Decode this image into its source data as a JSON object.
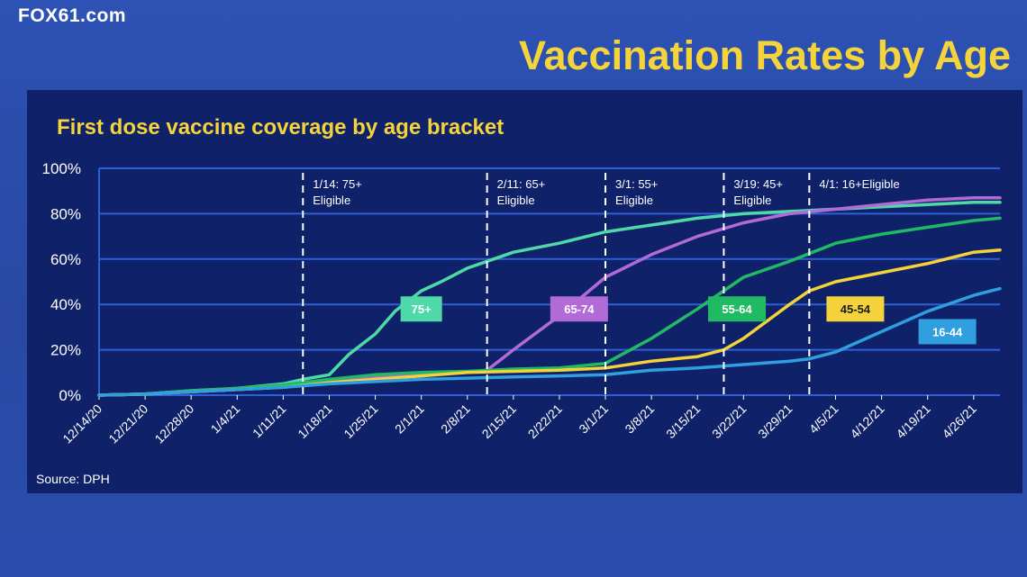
{
  "header": {
    "brand": "FOX61.com",
    "title": "Vaccination Rates by Age"
  },
  "colors": {
    "background": "#2a4ba6",
    "panel": "#0f2269",
    "title": "#f5d33a",
    "grid": "#2f5fd6"
  },
  "source": "Source: DPH",
  "chart_data": {
    "type": "line",
    "title": "First dose vaccine coverage by age bracket",
    "xlabel": "",
    "ylabel": "",
    "ylim": [
      0,
      100
    ],
    "x_range": [
      "2020-12-14",
      "2021-04-30"
    ],
    "y_ticks": [
      "0%",
      "20%",
      "40%",
      "60%",
      "80%",
      "100%"
    ],
    "y_tick_values": [
      0,
      20,
      40,
      60,
      80,
      100
    ],
    "x_ticks": [
      "12/14/20",
      "12/21/20",
      "12/28/20",
      "1/4/21",
      "1/11/21",
      "1/18/21",
      "1/25/21",
      "2/1/21",
      "2/8/21",
      "2/15/21",
      "2/22/21",
      "3/1/21",
      "3/8/21",
      "3/15/21",
      "3/22/21",
      "3/29/21",
      "4/5/21",
      "4/12/21",
      "4/19/21",
      "4/26/21"
    ],
    "x_tick_dates": [
      "2020-12-14",
      "2020-12-21",
      "2020-12-28",
      "2021-01-04",
      "2021-01-11",
      "2021-01-18",
      "2021-01-25",
      "2021-02-01",
      "2021-02-08",
      "2021-02-15",
      "2021-02-22",
      "2021-03-01",
      "2021-03-08",
      "2021-03-15",
      "2021-03-22",
      "2021-03-29",
      "2021-04-05",
      "2021-04-12",
      "2021-04-19",
      "2021-04-26"
    ],
    "grid": true,
    "legend": "inline labels",
    "annotations": [
      {
        "date": "2021-01-14",
        "lines": [
          "1/14: 75+",
          "Eligible"
        ]
      },
      {
        "date": "2021-02-11",
        "lines": [
          "2/11: 65+",
          "Eligible"
        ]
      },
      {
        "date": "2021-03-01",
        "lines": [
          "3/1: 55+",
          "Eligible"
        ]
      },
      {
        "date": "2021-03-19",
        "lines": [
          "3/19: 45+",
          "Eligible"
        ]
      },
      {
        "date": "2021-04-01",
        "lines": [
          "4/1: 16+Eligible"
        ]
      }
    ],
    "series": [
      {
        "name": "75+",
        "color": "#4fd8a8",
        "label_at": [
          "2021-02-01",
          38
        ],
        "points": [
          [
            "2020-12-14",
            0
          ],
          [
            "2020-12-21",
            0.5
          ],
          [
            "2020-12-28",
            2
          ],
          [
            "2021-01-04",
            3
          ],
          [
            "2021-01-11",
            5
          ],
          [
            "2021-01-14",
            7
          ],
          [
            "2021-01-18",
            9
          ],
          [
            "2021-01-21",
            18
          ],
          [
            "2021-01-25",
            27
          ],
          [
            "2021-01-28",
            37
          ],
          [
            "2021-02-01",
            46
          ],
          [
            "2021-02-04",
            50
          ],
          [
            "2021-02-08",
            56
          ],
          [
            "2021-02-11",
            59
          ],
          [
            "2021-02-15",
            63
          ],
          [
            "2021-02-22",
            67
          ],
          [
            "2021-03-01",
            72
          ],
          [
            "2021-03-08",
            75
          ],
          [
            "2021-03-15",
            78
          ],
          [
            "2021-03-22",
            80
          ],
          [
            "2021-03-29",
            81
          ],
          [
            "2021-04-05",
            82
          ],
          [
            "2021-04-12",
            83
          ],
          [
            "2021-04-19",
            84
          ],
          [
            "2021-04-26",
            85
          ],
          [
            "2021-04-30",
            85
          ]
        ]
      },
      {
        "name": "65-74",
        "color": "#b26ad6",
        "label_at": [
          "2021-02-25",
          38
        ],
        "points": [
          [
            "2020-12-14",
            0
          ],
          [
            "2020-12-21",
            0.5
          ],
          [
            "2020-12-28",
            1.5
          ],
          [
            "2021-01-04",
            2.5
          ],
          [
            "2021-01-11",
            4
          ],
          [
            "2021-01-18",
            6
          ],
          [
            "2021-01-25",
            8
          ],
          [
            "2021-02-01",
            9.5
          ],
          [
            "2021-02-08",
            10
          ],
          [
            "2021-02-11",
            11
          ],
          [
            "2021-02-15",
            20
          ],
          [
            "2021-02-22",
            35
          ],
          [
            "2021-03-01",
            52
          ],
          [
            "2021-03-08",
            62
          ],
          [
            "2021-03-15",
            70
          ],
          [
            "2021-03-22",
            76
          ],
          [
            "2021-03-29",
            80
          ],
          [
            "2021-04-05",
            82
          ],
          [
            "2021-04-12",
            84
          ],
          [
            "2021-04-19",
            86
          ],
          [
            "2021-04-26",
            87
          ],
          [
            "2021-04-30",
            87
          ]
        ]
      },
      {
        "name": "55-64",
        "color": "#1fba63",
        "label_at": [
          "2021-03-21",
          38
        ],
        "points": [
          [
            "2020-12-14",
            0
          ],
          [
            "2020-12-21",
            0.5
          ],
          [
            "2020-12-28",
            2
          ],
          [
            "2021-01-04",
            3
          ],
          [
            "2021-01-11",
            4.5
          ],
          [
            "2021-01-18",
            7
          ],
          [
            "2021-01-25",
            9
          ],
          [
            "2021-02-01",
            10
          ],
          [
            "2021-02-08",
            10.5
          ],
          [
            "2021-02-15",
            11.5
          ],
          [
            "2021-02-22",
            12
          ],
          [
            "2021-03-01",
            14
          ],
          [
            "2021-03-08",
            25
          ],
          [
            "2021-03-15",
            38
          ],
          [
            "2021-03-22",
            52
          ],
          [
            "2021-03-29",
            59
          ],
          [
            "2021-04-05",
            67
          ],
          [
            "2021-04-12",
            71
          ],
          [
            "2021-04-19",
            74
          ],
          [
            "2021-04-26",
            77
          ],
          [
            "2021-04-30",
            78
          ]
        ]
      },
      {
        "name": "45-54",
        "color": "#f3d23a",
        "label_at": [
          "2021-04-08",
          38
        ],
        "points": [
          [
            "2020-12-14",
            0
          ],
          [
            "2020-12-21",
            0.5
          ],
          [
            "2020-12-28",
            1.5
          ],
          [
            "2021-01-04",
            2.5
          ],
          [
            "2021-01-11",
            3.5
          ],
          [
            "2021-01-18",
            5.5
          ],
          [
            "2021-01-25",
            7
          ],
          [
            "2021-02-01",
            8.5
          ],
          [
            "2021-02-08",
            10
          ],
          [
            "2021-02-15",
            10.5
          ],
          [
            "2021-02-22",
            11
          ],
          [
            "2021-03-01",
            12
          ],
          [
            "2021-03-08",
            15
          ],
          [
            "2021-03-15",
            17
          ],
          [
            "2021-03-19",
            20
          ],
          [
            "2021-03-22",
            25
          ],
          [
            "2021-03-29",
            40
          ],
          [
            "2021-04-01",
            46
          ],
          [
            "2021-04-05",
            50
          ],
          [
            "2021-04-12",
            54
          ],
          [
            "2021-04-19",
            58
          ],
          [
            "2021-04-26",
            63
          ],
          [
            "2021-04-30",
            64
          ]
        ]
      },
      {
        "name": "16-44",
        "color": "#2f9fe0",
        "label_at": [
          "2021-04-22",
          28
        ],
        "points": [
          [
            "2020-12-14",
            0
          ],
          [
            "2020-12-21",
            0.5
          ],
          [
            "2020-12-28",
            1.5
          ],
          [
            "2021-01-04",
            2.5
          ],
          [
            "2021-01-11",
            3.5
          ],
          [
            "2021-01-18",
            5
          ],
          [
            "2021-01-25",
            6
          ],
          [
            "2021-02-01",
            7
          ],
          [
            "2021-02-08",
            7.5
          ],
          [
            "2021-02-15",
            8
          ],
          [
            "2021-02-22",
            8.5
          ],
          [
            "2021-03-01",
            9
          ],
          [
            "2021-03-08",
            11
          ],
          [
            "2021-03-15",
            12
          ],
          [
            "2021-03-22",
            13.5
          ],
          [
            "2021-03-29",
            15
          ],
          [
            "2021-04-01",
            16
          ],
          [
            "2021-04-05",
            19
          ],
          [
            "2021-04-12",
            28
          ],
          [
            "2021-04-19",
            37
          ],
          [
            "2021-04-26",
            44
          ],
          [
            "2021-04-30",
            47
          ]
        ]
      }
    ]
  }
}
